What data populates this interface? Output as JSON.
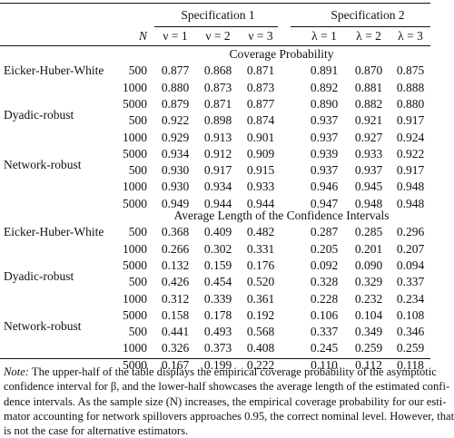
{
  "header": {
    "spec1": "Specification 1",
    "spec2": "Specification 2",
    "n_label": "N",
    "columns": [
      "ν = 1",
      "ν = 2",
      "ν = 3",
      "λ = 1",
      "λ = 2",
      "λ = 3"
    ]
  },
  "sections": [
    {
      "title": "Coverage Probability",
      "groups": [
        {
          "label": "Eicker-Huber-White",
          "rows": [
            {
              "n": "500",
              "values": [
                "0.877",
                "0.868",
                "0.871",
                "0.891",
                "0.870",
                "0.875"
              ]
            },
            {
              "n": "1000",
              "values": [
                "0.880",
                "0.873",
                "0.873",
                "0.892",
                "0.881",
                "0.888"
              ]
            },
            {
              "n": "5000",
              "values": [
                "0.879",
                "0.871",
                "0.877",
                "0.890",
                "0.882",
                "0.880"
              ]
            }
          ]
        },
        {
          "label": "Dyadic-robust",
          "rows": [
            {
              "n": "500",
              "values": [
                "0.922",
                "0.898",
                "0.874",
                "0.937",
                "0.921",
                "0.917"
              ]
            },
            {
              "n": "1000",
              "values": [
                "0.929",
                "0.913",
                "0.901",
                "0.937",
                "0.927",
                "0.924"
              ]
            },
            {
              "n": "5000",
              "values": [
                "0.934",
                "0.912",
                "0.909",
                "0.939",
                "0.933",
                "0.922"
              ]
            }
          ]
        },
        {
          "label": "Network-robust",
          "rows": [
            {
              "n": "500",
              "values": [
                "0.930",
                "0.917",
                "0.915",
                "0.937",
                "0.937",
                "0.917"
              ]
            },
            {
              "n": "1000",
              "values": [
                "0.930",
                "0.934",
                "0.933",
                "0.946",
                "0.945",
                "0.948"
              ]
            },
            {
              "n": "5000",
              "values": [
                "0.949",
                "0.944",
                "0.944",
                "0.947",
                "0.948",
                "0.948"
              ]
            }
          ]
        }
      ]
    },
    {
      "title": "Average Length of the Confidence Intervals",
      "groups": [
        {
          "label": "Eicker-Huber-White",
          "rows": [
            {
              "n": "500",
              "values": [
                "0.368",
                "0.409",
                "0.482",
                "0.287",
                "0.285",
                "0.296"
              ]
            },
            {
              "n": "1000",
              "values": [
                "0.266",
                "0.302",
                "0.331",
                "0.205",
                "0.201",
                "0.207"
              ]
            },
            {
              "n": "5000",
              "values": [
                "0.132",
                "0.159",
                "0.176",
                "0.092",
                "0.090",
                "0.094"
              ]
            }
          ]
        },
        {
          "label": "Dyadic-robust",
          "rows": [
            {
              "n": "500",
              "values": [
                "0.426",
                "0.454",
                "0.520",
                "0.328",
                "0.329",
                "0.337"
              ]
            },
            {
              "n": "1000",
              "values": [
                "0.312",
                "0.339",
                "0.361",
                "0.228",
                "0.232",
                "0.234"
              ]
            },
            {
              "n": "5000",
              "values": [
                "0.158",
                "0.178",
                "0.192",
                "0.106",
                "0.104",
                "0.108"
              ]
            }
          ]
        },
        {
          "label": "Network-robust",
          "rows": [
            {
              "n": "500",
              "values": [
                "0.441",
                "0.493",
                "0.568",
                "0.337",
                "0.349",
                "0.346"
              ]
            },
            {
              "n": "1000",
              "values": [
                "0.326",
                "0.373",
                "0.408",
                "0.245",
                "0.259",
                "0.259"
              ]
            },
            {
              "n": "5000",
              "values": [
                "0.167",
                "0.199",
                "0.222",
                "0.110",
                "0.112",
                "0.118"
              ]
            }
          ]
        }
      ]
    }
  ],
  "note": {
    "label": "Note:",
    "lines": [
      "The upper-half of the table displays the empirical coverage probability of the asymptotic",
      "confidence interval for β, and the lower-half showcases the average length of the estimated confi-",
      "dence intervals. As the sample size (N) increases, the empirical coverage probability for our esti-",
      "mator accounting for network spillovers approaches 0.95, the correct nominal level. However, that",
      "is not the case for alternative estimators."
    ]
  }
}
